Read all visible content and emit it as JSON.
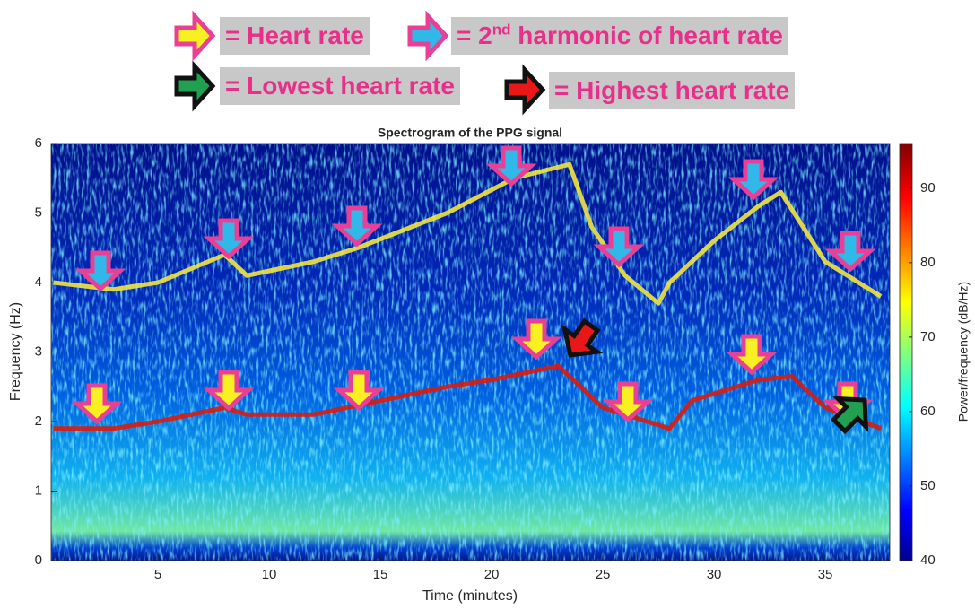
{
  "legend": [
    {
      "text": "= Heart rate"
    },
    {
      "text": "= 2",
      "superscript": "nd",
      "text_after": " harmonic of heart rate"
    },
    {
      "text": "= Lowest heart rate"
    },
    {
      "text": "= Highest heart rate"
    }
  ],
  "chart_data": {
    "type": "spectrogram",
    "title": "Spectrogram of the PPG signal",
    "x_label": "Time (minutes)",
    "y_label": "Frequency (Hz)",
    "colorbar_label": "Power/frequency (dB/Hz)",
    "xlim": [
      0.2,
      37.9
    ],
    "xticks": [
      5,
      10,
      15,
      20,
      25,
      30,
      35
    ],
    "ylim": [
      0,
      6
    ],
    "yticks": [
      0,
      1,
      2,
      3,
      4,
      5,
      6
    ],
    "clim": [
      40,
      96
    ],
    "cticks": [
      40,
      50,
      60,
      70,
      80,
      90
    ],
    "grid": false,
    "series": [
      {
        "color": "#d81c10",
        "x": [
          0.3,
          3,
          5,
          8,
          9,
          12,
          15,
          18,
          20,
          23,
          24,
          25,
          27,
          28,
          29,
          31,
          32,
          33.5,
          35,
          37.5
        ],
        "values": [
          1.9,
          1.9,
          2.0,
          2.2,
          2.1,
          2.1,
          2.3,
          2.5,
          2.6,
          2.8,
          2.5,
          2.2,
          2.0,
          1.9,
          2.3,
          2.5,
          2.6,
          2.65,
          2.2,
          1.9
        ]
      },
      {
        "color": "#f2e640",
        "x": [
          0.3,
          3,
          5,
          8,
          9,
          12,
          14,
          18,
          21,
          23.5,
          24.5,
          26,
          27.5,
          28,
          30,
          32,
          33,
          35,
          37.5
        ],
        "values": [
          4.0,
          3.9,
          4.0,
          4.4,
          4.1,
          4.3,
          4.5,
          5.0,
          5.5,
          5.7,
          4.8,
          4.1,
          3.7,
          4.0,
          4.6,
          5.1,
          5.3,
          4.3,
          3.8
        ]
      }
    ]
  }
}
